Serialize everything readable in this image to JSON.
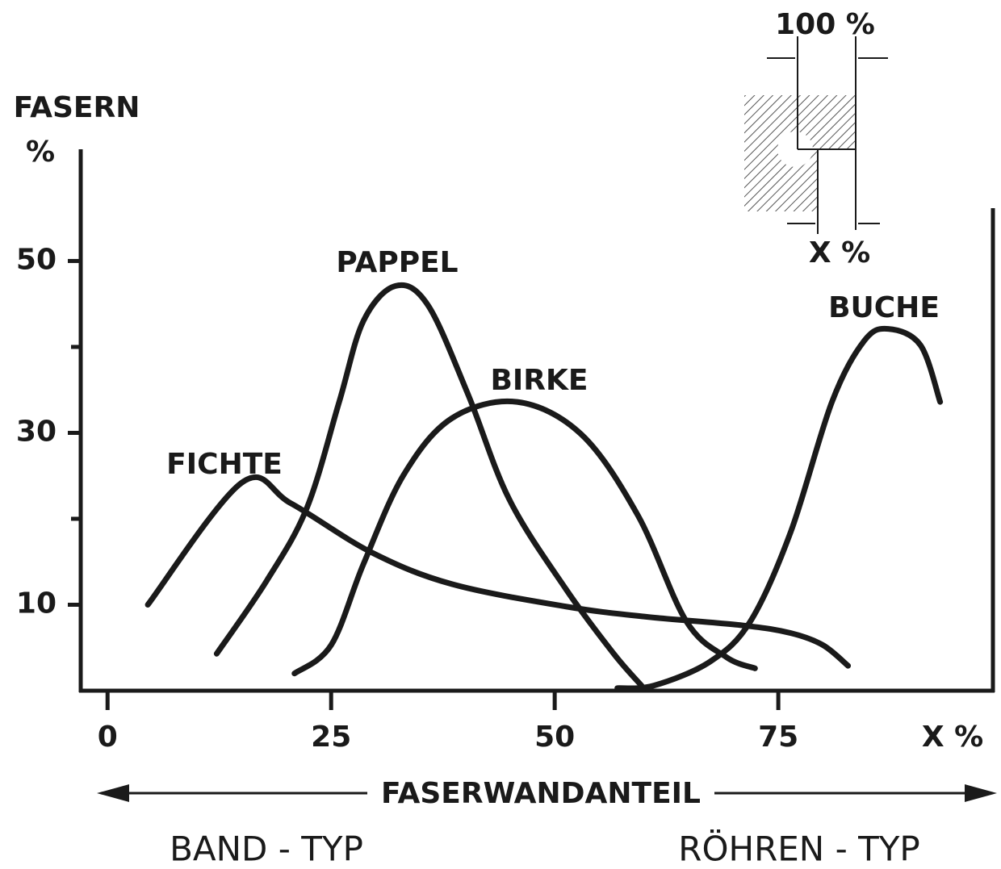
{
  "chart_data": {
    "type": "line",
    "y_label": [
      "FASERN",
      "%"
    ],
    "x_label": "X %",
    "axis_caption": "FASERWANDANTEIL",
    "left_caption": "BAND - TYP",
    "right_caption": "RÖHREN - TYP",
    "inset_labels": [
      "100 %",
      "X %"
    ],
    "xlim": [
      -3,
      99
    ],
    "xticks": [
      0,
      25,
      50,
      75
    ],
    "ylim": [
      0,
      63
    ],
    "yticks": [
      10,
      30,
      50
    ],
    "yminor": [
      20,
      40
    ],
    "grid": false,
    "series": [
      {
        "name": "FICHTE",
        "color": "#1a1a1a",
        "x": [
          4.5,
          15,
          20.5,
          29.5,
          38.5,
          51.2,
          60.2,
          71,
          76.4,
          80,
          82.8
        ],
        "values": [
          10,
          24.2,
          21.8,
          16.1,
          12.4,
          9.8,
          8.6,
          7.6,
          6.7,
          5.3,
          2.9
        ]
      },
      {
        "name": "PAPPEL",
        "color": "#1a1a1a",
        "x": [
          12.2,
          17.8,
          22.3,
          25.9,
          28.6,
          32.2,
          35.8,
          40.3,
          44.9,
          51.2,
          56.6,
          59.7
        ],
        "values": [
          4.3,
          12.8,
          21.3,
          33.6,
          43,
          47.1,
          44.9,
          34.5,
          22.3,
          11.9,
          4.3,
          0.6
        ]
      },
      {
        "name": "BIRKE",
        "color": "#1a1a1a",
        "x": [
          20.9,
          25,
          28.6,
          33.1,
          38.5,
          45.8,
          53,
          59.3,
          64.7,
          69.2,
          72.4
        ],
        "values": [
          2,
          5.3,
          14.7,
          25.1,
          31.7,
          33.6,
          29.8,
          20.4,
          8.1,
          3.9,
          2.6
        ]
      },
      {
        "name": "BUCHE",
        "color": "#1a1a1a",
        "x": [
          57,
          61.1,
          67.4,
          71.9,
          76.4,
          81,
          84.6,
          87.3,
          90.9,
          93.1
        ],
        "values": [
          0.3,
          0.6,
          3.4,
          8.1,
          18.5,
          33.6,
          40.7,
          42.1,
          40.2,
          33.6
        ]
      }
    ]
  }
}
